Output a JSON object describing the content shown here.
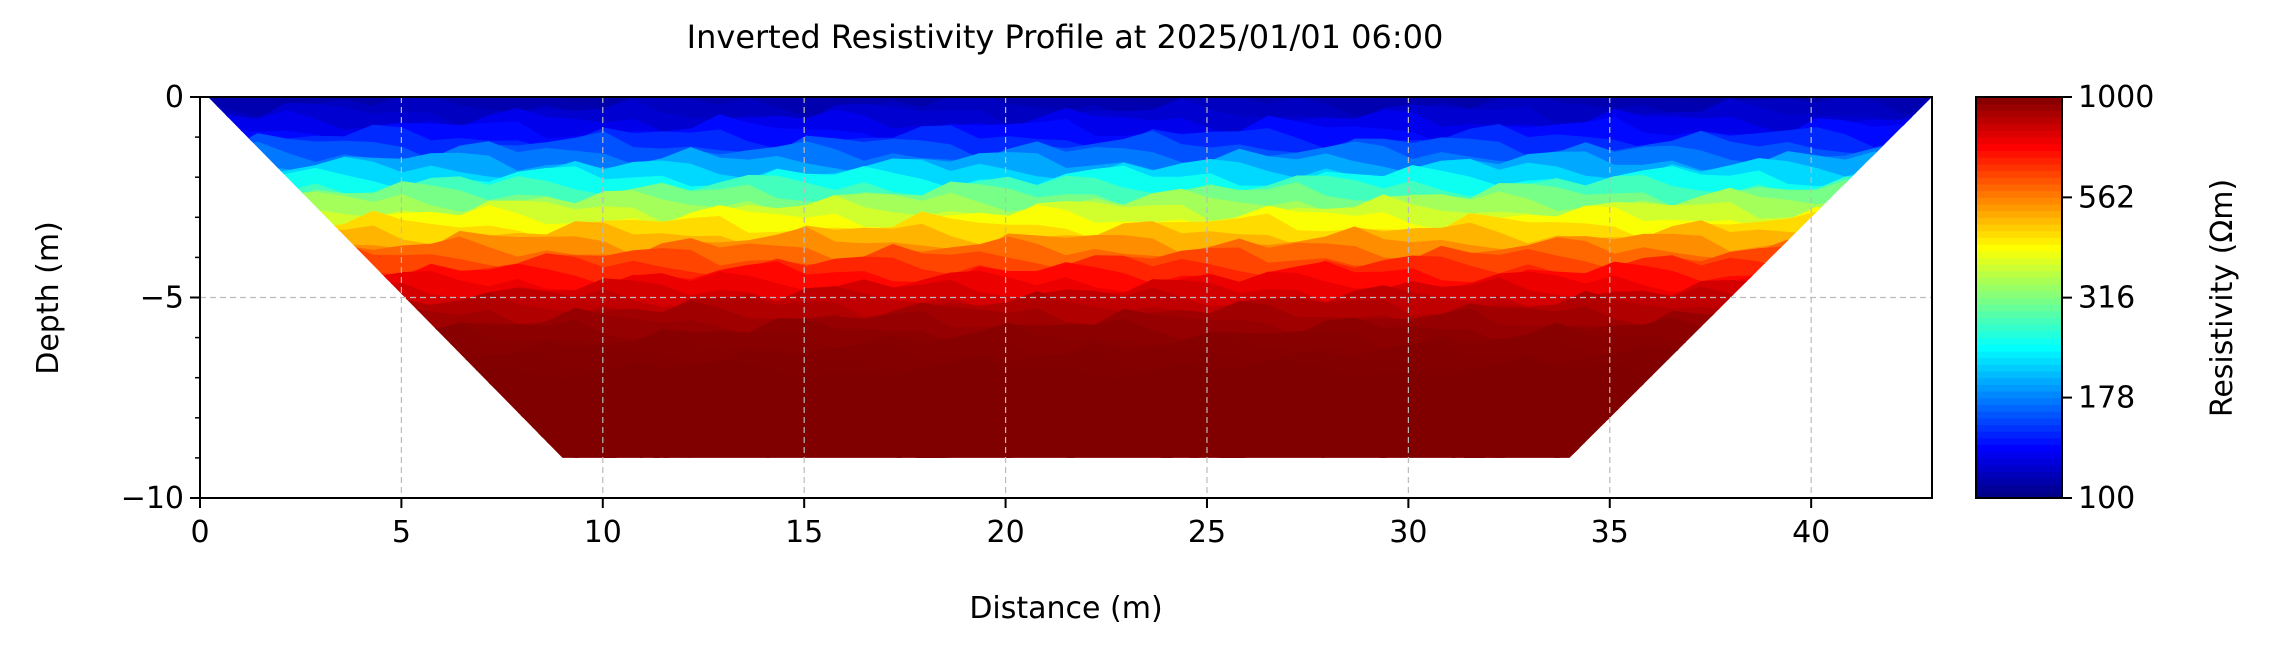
{
  "chart_data": {
    "type": "heatmap",
    "title": "Inverted Resistivity Profile at 2025/01/01 06:00",
    "xlabel": "Distance (m)",
    "ylabel": "Depth (m)",
    "xlim": [
      0,
      43
    ],
    "ylim": [
      -10,
      0
    ],
    "x_ticks": [
      "0",
      "5",
      "10",
      "15",
      "20",
      "25",
      "30",
      "35",
      "40"
    ],
    "x_tick_values": [
      0,
      5,
      10,
      15,
      20,
      25,
      30,
      35,
      40
    ],
    "y_ticks": [
      "0",
      "−5",
      "−10"
    ],
    "y_tick_values": [
      0,
      -5,
      -10
    ],
    "grid": true,
    "colormap": "jet",
    "colorbar": {
      "label": "Resistivity (Ωm)",
      "scale": "log",
      "range": [
        100,
        1000
      ],
      "ticks": [
        "1000",
        "562",
        "316",
        "178",
        "100"
      ],
      "tick_values": [
        1000,
        562,
        316,
        178,
        100
      ]
    },
    "section_outline": {
      "x": [
        0.2,
        43,
        34,
        9
      ],
      "y": [
        0,
        0,
        -9,
        -9
      ]
    },
    "profile_depth": [
      0,
      -0.5,
      -1,
      -1.5,
      -2,
      -2.5,
      -3,
      -3.5,
      -4,
      -4.5,
      -5,
      -5.5,
      -6,
      -7,
      -8,
      -9
    ],
    "profile_resistivity": [
      110,
      120,
      140,
      175,
      230,
      310,
      400,
      500,
      620,
      740,
      850,
      930,
      980,
      1000,
      1000,
      1000
    ]
  }
}
